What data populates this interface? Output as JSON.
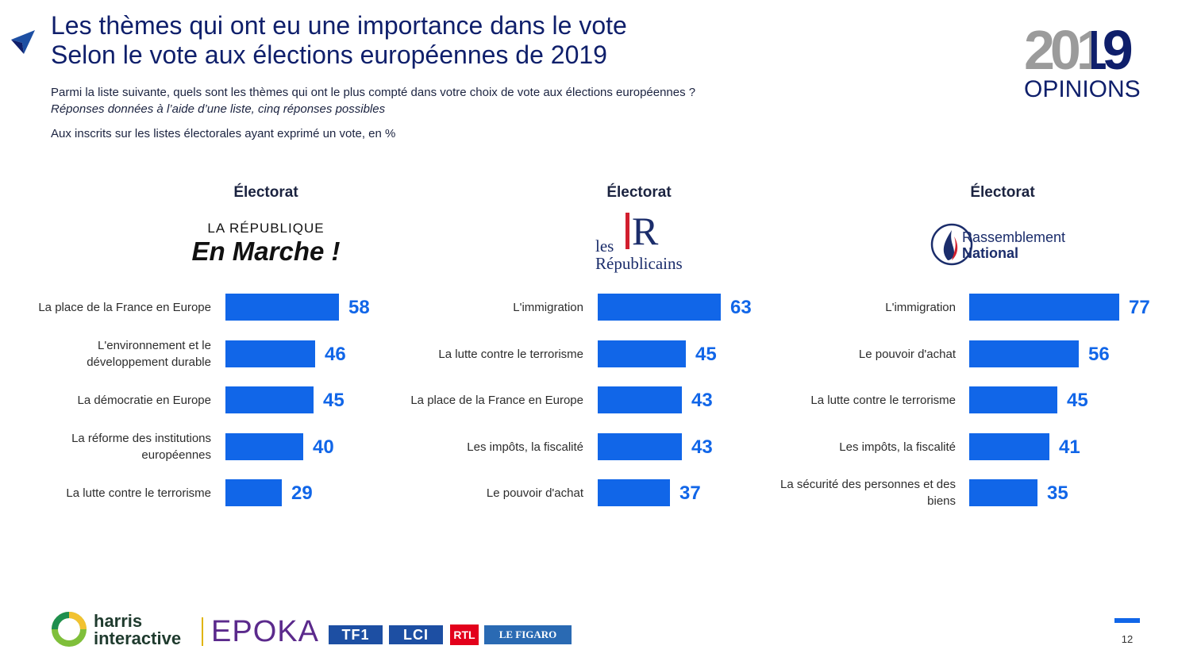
{
  "title": {
    "line1": "Les thèmes qui ont eu une importance dans le vote",
    "line2": "Selon le vote aux élections européennes de 2019"
  },
  "question": "Parmi la liste suivante, quels sont les thèmes qui ont le plus compté dans votre choix de vote aux élections européennes ?",
  "instruction": "Réponses données à l’aide d’une liste, cinq réponses possibles",
  "base": "Aux inscrits sur les listes électorales ayant exprimé un vote, en %",
  "brand": {
    "year": "2019",
    "word": "OPINIONS"
  },
  "party_logos": {
    "lrem": {
      "top": "LA RÉPUBLIQUE",
      "bottom": "En Marche !"
    },
    "lr": {
      "mark": "R",
      "line1": "les",
      "line2": "Républicains"
    },
    "rn": {
      "line1": "Rassemblement",
      "line2": "National"
    }
  },
  "footer": {
    "harris1": "harris",
    "harris2": "interactive",
    "epoka": "EPOKA",
    "tf1": "TF1",
    "lci": "LCI",
    "rtl": "RTL",
    "figaro": "LE FIGARO",
    "page": "12"
  },
  "colors": {
    "bar": "#1166e8",
    "title": "#0f1f6b"
  },
  "chart_data": [
    {
      "type": "bar",
      "orientation": "horizontal",
      "title": "Électorat",
      "categories": [
        "La place de la France en Europe",
        "L'environnement et le développement durable",
        "La démocratie en Europe",
        "La réforme des institutions européennes",
        "La lutte contre le terrorisme"
      ],
      "values": [
        58,
        46,
        45,
        40,
        29
      ]
    },
    {
      "type": "bar",
      "orientation": "horizontal",
      "title": "Électorat",
      "categories": [
        "L'immigration",
        "La lutte contre le terrorisme",
        "La place de la France en Europe",
        "Les impôts, la fiscalité",
        "Le pouvoir d'achat"
      ],
      "values": [
        63,
        45,
        43,
        43,
        37
      ]
    },
    {
      "type": "bar",
      "orientation": "horizontal",
      "title": "Électorat",
      "categories": [
        "L'immigration",
        "Le pouvoir d'achat",
        "La lutte contre le terrorisme",
        "Les impôts, la fiscalité",
        "La sécurité des personnes et des biens"
      ],
      "values": [
        77,
        56,
        45,
        41,
        35
      ]
    }
  ]
}
